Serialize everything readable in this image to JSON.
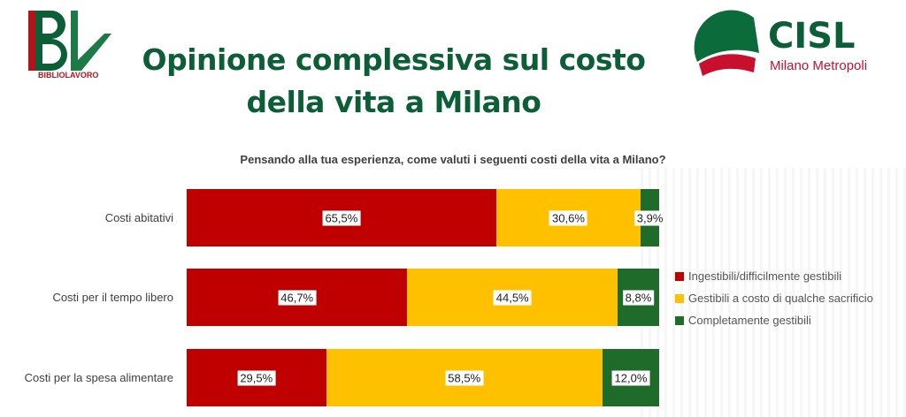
{
  "header": {
    "title": "Opinione complessiva sul costo della vita a Milano",
    "logo_left_text": "BIBLIOLAVORO",
    "logo_right_name": "CISL",
    "logo_right_sub": "Milano Metropoli"
  },
  "chart_data": {
    "type": "bar",
    "orientation": "horizontal",
    "stacked": true,
    "title": "Pensando alla tua esperienza, come valuti i seguenti costi della vita a Milano?",
    "categories": [
      "Costi abitativi",
      "Costi per il tempo libero",
      "Costi per la spesa alimentare"
    ],
    "series": [
      {
        "name": "Ingestibili/difficilmente gestibili",
        "color": "#c00000",
        "values": [
          65.5,
          46.7,
          29.5
        ],
        "labels": [
          "65,5%",
          "46,7%",
          "29,5%"
        ]
      },
      {
        "name": "Gestibili a costo di qualche sacrificio",
        "color": "#ffc000",
        "values": [
          30.6,
          44.5,
          58.5
        ],
        "labels": [
          "30,6%",
          "44,5%",
          "58,5%"
        ]
      },
      {
        "name": "Completamente gestibili",
        "color": "#1e6b2a",
        "values": [
          3.9,
          8.8,
          12.0
        ],
        "labels": [
          "3,9%",
          "8,8%",
          "12,0%"
        ]
      }
    ],
    "xlim": [
      0,
      100
    ],
    "legend": "right"
  }
}
